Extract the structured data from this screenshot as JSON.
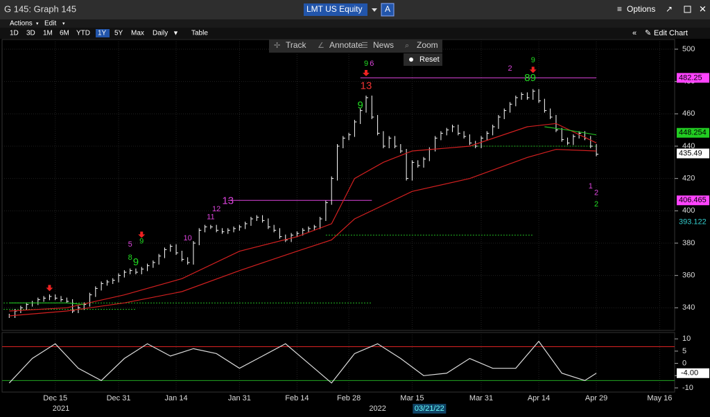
{
  "window": {
    "title": "G 145: Graph 145",
    "ticker": "LMT US Equity",
    "ticker_tag": "A",
    "options": "Options"
  },
  "menu": [
    "Actions",
    "Edit"
  ],
  "toolbar": {
    "ranges": [
      "1D",
      "3D",
      "1M",
      "6M",
      "YTD",
      "1Y",
      "5Y",
      "Max"
    ],
    "active": 5,
    "period": "Daily",
    "table": "Table",
    "edit_chart": "Edit Chart"
  },
  "chart_tools": [
    "Track",
    "Annotate",
    "News",
    "Zoom"
  ],
  "reset": "Reset",
  "chart_data": [
    {
      "type": "line",
      "xlim": [
        -1,
        115
      ],
      "xticks": [
        {
          "value": 8,
          "label": "Dec 15"
        },
        {
          "value": 19,
          "label": "Dec 31"
        },
        {
          "value": 29,
          "label": "Jan 14"
        },
        {
          "value": 40,
          "label": "Jan 31"
        },
        {
          "value": 50,
          "label": "Feb 14"
        },
        {
          "value": 59,
          "label": "Feb 28"
        },
        {
          "value": 70,
          "label": "Mar 15"
        },
        {
          "value": 82,
          "label": "Mar 31"
        },
        {
          "value": 92,
          "label": "Apr 14"
        },
        {
          "value": 102,
          "label": "Apr 29"
        },
        {
          "value": 113,
          "label": "May 16"
        }
      ],
      "years": [
        {
          "value": 9,
          "label": "2021"
        },
        {
          "value": 64,
          "label": "2022"
        }
      ],
      "cursor": {
        "value": 73,
        "label": "03/21/22"
      },
      "ylim": [
        326,
        506
      ],
      "yticks": [
        340,
        360,
        380,
        400,
        420,
        440,
        460,
        480,
        500
      ],
      "grid": true,
      "series": [
        {
          "color": "#ffffff",
          "values": [
            335,
            338,
            340,
            342,
            343,
            345,
            346,
            347,
            346,
            345,
            344,
            338,
            340,
            342,
            348,
            352,
            355,
            356,
            357,
            360,
            362,
            363,
            362,
            364,
            366,
            368,
            372,
            376,
            378,
            374,
            370,
            368,
            380,
            388,
            390,
            390,
            388,
            387,
            388,
            389,
            390,
            392,
            395,
            396,
            394,
            390,
            388,
            384,
            382,
            385,
            386,
            388,
            389,
            390,
            395,
            405,
            420,
            440,
            445,
            447,
            455,
            462,
            470,
            458,
            448,
            440,
            445,
            440,
            437,
            420,
            430,
            428,
            432,
            438,
            445,
            448,
            450,
            452,
            448,
            446,
            442,
            440,
            445,
            448,
            452,
            458,
            462,
            466,
            470,
            472,
            470,
            474,
            468,
            462,
            458,
            450,
            444,
            442,
            446,
            448,
            445,
            440,
            435
          ]
        },
        {
          "color": "#d42020",
          "x": [
            0,
            10,
            20,
            30,
            40,
            50,
            56,
            60,
            65,
            70,
            80,
            90,
            95,
            102
          ],
          "values": [
            338,
            340,
            348,
            358,
            375,
            384,
            392,
            420,
            430,
            437,
            440,
            452,
            454,
            442
          ]
        },
        {
          "color": "#d42020",
          "x": [
            0,
            10,
            20,
            30,
            40,
            50,
            56,
            60,
            70,
            80,
            90,
            95,
            102
          ],
          "values": [
            335,
            338,
            343,
            350,
            363,
            375,
            382,
            395,
            412,
            420,
            433,
            438,
            437
          ]
        },
        {
          "color": "#22bb22",
          "x": [
            0,
            10,
            13
          ],
          "values": [
            343,
            343,
            342
          ]
        },
        {
          "color": "#22bb22",
          "x": [
            93,
            97,
            102
          ],
          "values": [
            452,
            450,
            447
          ]
        }
      ],
      "levels": [
        {
          "value": 482.25,
          "from": 61,
          "to": 102,
          "color": "#dd44dd"
        },
        {
          "value": 406.465,
          "from": 38,
          "to": 63,
          "color": "#dd44dd"
        },
        {
          "value": 385,
          "from": 55,
          "to": 91,
          "color": "#22bb22"
        },
        {
          "value": 440,
          "from": 80,
          "to": 102,
          "color": "#22bb22"
        },
        {
          "value": 343,
          "from": -1,
          "to": 63,
          "color": "#22bb22"
        },
        {
          "value": 339,
          "from": -1,
          "to": 22,
          "color": "#22bb22"
        }
      ],
      "tags": [
        {
          "value": 482.25,
          "bg": "#ff44ff",
          "fg": "#000000"
        },
        {
          "value": 448.254,
          "bg": "#22cc22",
          "fg": "#000000"
        },
        {
          "value": 435.49,
          "bg": "#ffffff",
          "fg": "#000000"
        },
        {
          "value": 406.465,
          "bg": "#ff44ff",
          "fg": "#000000"
        },
        {
          "value": 393.122,
          "bg": "#000000",
          "fg": "#33cccc"
        }
      ],
      "annotations": [
        {
          "text": "13",
          "x": 38,
          "y": 406,
          "color": "#dd44dd",
          "big": true
        },
        {
          "text": "12",
          "x": 36,
          "y": 401,
          "color": "#dd44dd",
          "big": false
        },
        {
          "text": "11",
          "x": 35,
          "y": 396,
          "color": "#dd44dd",
          "big": false
        },
        {
          "text": "10",
          "x": 31,
          "y": 383,
          "color": "#dd44dd",
          "big": false
        },
        {
          "text": "5",
          "x": 21,
          "y": 379,
          "color": "#dd44dd",
          "big": false
        },
        {
          "text": "8",
          "x": 21,
          "y": 371,
          "color": "#22dd22",
          "big": false
        },
        {
          "text": "9",
          "x": 22,
          "y": 368,
          "color": "#22dd22",
          "big": true
        },
        {
          "text": "9",
          "x": 23,
          "y": 381,
          "color": "#22dd22",
          "big": false
        },
        {
          "text": "13",
          "x": 62,
          "y": 477,
          "color": "#ee3333",
          "big": true
        },
        {
          "text": "9",
          "x": 62,
          "y": 491,
          "color": "#22dd22",
          "big": false
        },
        {
          "text": "6",
          "x": 63,
          "y": 491,
          "color": "#dd44dd",
          "big": false
        },
        {
          "text": "9",
          "x": 61,
          "y": 465,
          "color": "#22dd22",
          "big": true
        },
        {
          "text": "9",
          "x": 91,
          "y": 493,
          "color": "#22dd22",
          "big": false
        },
        {
          "text": "8",
          "x": 90,
          "y": 482,
          "color": "#22dd22",
          "big": true
        },
        {
          "text": "9",
          "x": 91,
          "y": 482,
          "color": "#22dd22",
          "big": true
        },
        {
          "text": "2",
          "x": 87,
          "y": 488,
          "color": "#dd44dd",
          "big": false
        },
        {
          "text": "1",
          "x": 101,
          "y": 415,
          "color": "#dd44dd",
          "big": false
        },
        {
          "text": "2",
          "x": 102,
          "y": 411,
          "color": "#dd44dd",
          "big": false
        },
        {
          "text": "2",
          "x": 102,
          "y": 404,
          "color": "#22dd22",
          "big": false
        }
      ],
      "signals": [
        {
          "x": 7,
          "y": 352
        },
        {
          "x": 23,
          "y": 385
        },
        {
          "x": 62,
          "y": 485
        },
        {
          "x": 91,
          "y": 487
        }
      ]
    },
    {
      "type": "line",
      "xlim": [
        -1,
        115
      ],
      "ylim": [
        -11.7,
        12.6
      ],
      "yticks": [
        10,
        5,
        0,
        -5,
        -10
      ],
      "series": [
        {
          "color": "#dddddd",
          "x": [
            0,
            4,
            8,
            12,
            16,
            20,
            24,
            28,
            32,
            36,
            40,
            44,
            48,
            52,
            56,
            60,
            64,
            68,
            72,
            76,
            80,
            84,
            88,
            92,
            96,
            100,
            102
          ],
          "values": [
            -8,
            2,
            8,
            -2,
            -7,
            2,
            8,
            3,
            6,
            4,
            -2,
            3,
            8,
            0,
            -8,
            4,
            8,
            2,
            -5,
            -4,
            2,
            -2,
            -2,
            9,
            -4,
            -7,
            -4
          ]
        }
      ],
      "levels": [
        {
          "value": 6.8,
          "color": "#dd2222"
        },
        {
          "value": -7,
          "color": "#22aa22"
        }
      ],
      "tag": {
        "value": -4,
        "label": "-4.00"
      }
    }
  ]
}
